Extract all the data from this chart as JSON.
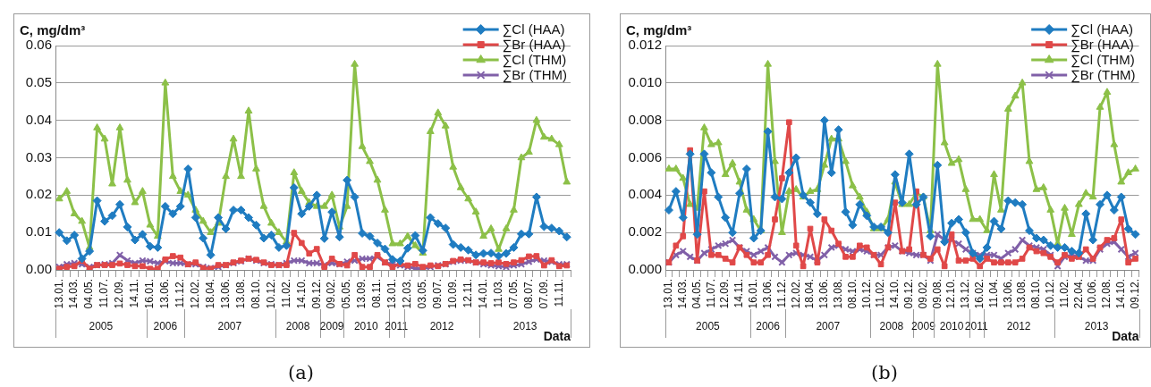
{
  "chart_data": [
    {
      "type": "line",
      "ylabel": "C, mg/dm³",
      "xlabel": "Data",
      "legend": "top right",
      "grid": "y",
      "ylim": [
        0,
        0.06
      ],
      "yticks": [
        {
          "value": 0,
          "label": "0.00"
        },
        {
          "value": 0.01,
          "label": "0.01"
        },
        {
          "value": 0.02,
          "label": "0.02"
        },
        {
          "value": 0.03,
          "label": "0.03"
        },
        {
          "value": 0.04,
          "label": "0.04"
        },
        {
          "value": 0.05,
          "label": "0.05"
        },
        {
          "value": 0.06,
          "label": "0.06"
        }
      ],
      "categories": [
        "13.01.",
        null,
        "14.03.",
        null,
        "04.05.",
        null,
        "11.07.",
        null,
        "12.09.",
        null,
        "14.11.",
        null,
        "16.01.",
        null,
        "13.06.",
        null,
        "11.12.",
        null,
        "12.02.",
        null,
        "18.04.",
        null,
        "13.06.",
        null,
        "13.08.",
        null,
        "08.10.",
        null,
        "10.12.",
        null,
        "11.02.",
        null,
        "14.10.",
        null,
        "09.12.",
        null,
        "09.02.",
        null,
        "05.05.",
        null,
        "13.09.",
        null,
        "08.11.",
        null,
        "13.01.",
        null,
        "12.03.",
        null,
        "03.05.",
        null,
        "09.07.",
        null,
        "10.09.",
        null,
        "12.11.",
        null,
        "14.01.",
        null,
        "11.03.",
        null,
        "07.05.",
        null,
        "08.07.",
        null,
        "07.09.",
        null,
        "11.11.",
        null
      ],
      "series": [
        {
          "name": "∑Cl (HAA)",
          "color": "#1f7cc1",
          "marker": "diamond",
          "values": [
            0.01,
            0.0078,
            0.0093,
            0.003,
            0.005,
            0.0185,
            0.013,
            0.0145,
            0.0175,
            0.0115,
            0.008,
            0.0095,
            0.0063,
            0.006,
            0.017,
            0.015,
            0.017,
            0.027,
            0.014,
            0.0085,
            0.004,
            0.014,
            0.011,
            0.016,
            0.016,
            0.014,
            0.012,
            0.0085,
            0.0093,
            0.006,
            0.0065,
            0.022,
            0.015,
            0.017,
            0.02,
            0.0084,
            0.0155,
            0.0088,
            0.024,
            0.0195,
            0.0098,
            0.009,
            0.0072,
            0.0056,
            0.0028,
            0.0024,
            0.0058,
            0.0092,
            0.0052,
            0.014,
            0.0124,
            0.0112,
            0.0068,
            0.006,
            0.0053,
            0.004,
            0.0044,
            0.0045,
            0.0037,
            0.0044,
            0.006,
            0.0096,
            0.0096,
            0.0195,
            0.0116,
            0.0112,
            0.0104,
            0.0088
          ]
        },
        {
          "name": "∑Br (HAA)",
          "color": "#e04848",
          "marker": "square",
          "values": [
            0.0003,
            0.0008,
            0.001,
            0.0025,
            0.0003,
            0.0013,
            0.0013,
            0.0013,
            0.0017,
            0.0013,
            0.001,
            0.001,
            0.0003,
            0.0003,
            0.0028,
            0.0037,
            0.0033,
            0.0015,
            0.002,
            0.0005,
            0.0003,
            0.0013,
            0.0013,
            0.002,
            0.0025,
            0.003,
            0.0027,
            0.002,
            0.0013,
            0.0013,
            0.0013,
            0.0099,
            0.0072,
            0.0044,
            0.0056,
            0.0008,
            0.003,
            0.0016,
            0.0012,
            0.004,
            0.0008,
            0.0008,
            0.004,
            0.002,
            0.0008,
            0.0016,
            0.0012,
            0.0016,
            0.0008,
            0.0012,
            0.001,
            0.0016,
            0.0024,
            0.0028,
            0.0026,
            0.002,
            0.002,
            0.0018,
            0.002,
            0.0016,
            0.002,
            0.0026,
            0.0036,
            0.0037,
            0.0012,
            0.0026,
            0.001,
            0.0012
          ]
        },
        {
          "name": "∑Cl (THM)",
          "color": "#8cc048",
          "marker": "triangle",
          "values": [
            0.019,
            0.021,
            0.015,
            0.013,
            0.006,
            0.038,
            0.035,
            0.023,
            0.038,
            0.024,
            0.018,
            0.021,
            0.012,
            0.009,
            0.05,
            0.025,
            0.021,
            0.02,
            0.016,
            0.013,
            0.01,
            0.0125,
            0.025,
            0.035,
            0.025,
            0.0425,
            0.027,
            0.017,
            0.0125,
            0.01,
            0.0075,
            0.026,
            0.021,
            0.018,
            0.017,
            0.017,
            0.02,
            0.0115,
            0.017,
            0.055,
            0.033,
            0.029,
            0.024,
            0.016,
            0.007,
            0.007,
            0.009,
            0.0065,
            0.0045,
            0.037,
            0.042,
            0.0385,
            0.0275,
            0.022,
            0.019,
            0.0155,
            0.009,
            0.011,
            0.0055,
            0.011,
            0.016,
            0.03,
            0.0315,
            0.04,
            0.0355,
            0.035,
            0.0335,
            0.0235
          ]
        },
        {
          "name": "∑Br (THM)",
          "color": "#8060a8",
          "marker": "cross",
          "values": [
            0.0008,
            0.0015,
            0.0018,
            0.0015,
            0.0008,
            0.0013,
            0.0015,
            0.0018,
            0.004,
            0.0025,
            0.0018,
            0.0025,
            0.0023,
            0.0018,
            0.0023,
            0.0018,
            0.0018,
            0.0015,
            0.0015,
            0.0008,
            0.0005,
            0.0008,
            0.0013,
            0.0018,
            0.0023,
            0.003,
            0.0025,
            0.0018,
            0.0015,
            0.0013,
            0.0018,
            0.0025,
            0.0025,
            0.0018,
            0.0018,
            0.0013,
            0.0018,
            0.0015,
            0.0022,
            0.0025,
            0.003,
            0.003,
            0.0035,
            0.002,
            0.0015,
            0.0012,
            0.0008,
            0.0004,
            0.0003,
            0.0008,
            0.0012,
            0.0015,
            0.0022,
            0.0025,
            0.0025,
            0.002,
            0.0015,
            0.0012,
            0.001,
            0.0008,
            0.0012,
            0.0015,
            0.0022,
            0.0028,
            0.0025,
            0.0022,
            0.0015,
            0.0015
          ]
        }
      ],
      "annotations": [
        "(a)",
        "2005",
        "2006",
        "2007",
        "2008",
        "2009",
        "2010",
        "2011",
        "2012",
        "2013"
      ]
    },
    {
      "type": "line",
      "ylabel": "C, mg/dm³",
      "xlabel": "Data",
      "legend": "top right",
      "grid": "y",
      "ylim": [
        0,
        0.012
      ],
      "yticks": [
        {
          "value": 0,
          "label": "0.000"
        },
        {
          "value": 0.002,
          "label": "0.002"
        },
        {
          "value": 0.004,
          "label": "0.004"
        },
        {
          "value": 0.006,
          "label": "0.006"
        },
        {
          "value": 0.008,
          "label": "0.008"
        },
        {
          "value": 0.01,
          "label": "0.010"
        },
        {
          "value": 0.012,
          "label": "0.012"
        }
      ],
      "categories": [
        "13.01.",
        null,
        "14.03.",
        null,
        "04.05.",
        null,
        "11.07.",
        null,
        "12.09.",
        null,
        "14.11.",
        null,
        "16.01.",
        null,
        "13.06.",
        null,
        "11.12.",
        null,
        "12.02.",
        null,
        "18.04.",
        null,
        "13.06.",
        null,
        "13.08.",
        null,
        "08.10.",
        null,
        "10.12.",
        null,
        "11.02.",
        null,
        "14.10.",
        null,
        "09.12.",
        null,
        "09.02.",
        null,
        "09.08.",
        null,
        "12.10.",
        null,
        "13.12.",
        null,
        "16.02.",
        null,
        "11.04.",
        null,
        "13.06.",
        null,
        "13.08.",
        null,
        "08.10.",
        null,
        "10.12.",
        null,
        "11.02.",
        null,
        "22.04.",
        null,
        "10.06.",
        null,
        "12.08.",
        null,
        "14.10.",
        null,
        "09.12."
      ],
      "series": [
        {
          "name": "∑Cl (HAA)",
          "color": "#1f7cc1",
          "marker": "diamond",
          "values": [
            0.0032,
            0.0042,
            0.0028,
            0.0062,
            0.0019,
            0.0062,
            0.0052,
            0.0039,
            0.0028,
            0.002,
            0.0041,
            0.0054,
            0.0017,
            0.0021,
            0.0074,
            0.0039,
            0.0038,
            0.0052,
            0.006,
            0.004,
            0.0036,
            0.003,
            0.008,
            0.0052,
            0.0075,
            0.0031,
            0.0024,
            0.0035,
            0.0029,
            0.0023,
            0.0023,
            0.002,
            0.0051,
            0.0036,
            0.0062,
            0.0035,
            0.0039,
            0.0018,
            0.0056,
            0.0015,
            0.0025,
            0.0027,
            0.002,
            0.0009,
            0.0006,
            0.0012,
            0.0026,
            0.0022,
            0.0037,
            0.0036,
            0.0035,
            0.0021,
            0.0017,
            0.0016,
            0.0013,
            0.0012,
            0.0012,
            0.001,
            0.0009,
            0.003,
            0.0016,
            0.0035,
            0.004,
            0.0032,
            0.0039,
            0.0022,
            0.0019
          ]
        },
        {
          "name": "∑Br (HAA)",
          "color": "#e04848",
          "marker": "square",
          "values": [
            0.0004,
            0.0013,
            0.0018,
            0.0064,
            0.0005,
            0.0042,
            0.0008,
            0.0008,
            0.0006,
            0.0004,
            0.0012,
            0.0008,
            0.0004,
            0.0004,
            0.0008,
            0.0027,
            0.0049,
            0.0079,
            0.0013,
            0.0002,
            0.0022,
            0.0004,
            0.0027,
            0.0021,
            0.0014,
            0.0007,
            0.0007,
            0.0013,
            0.0012,
            0.0008,
            0.0003,
            0.0012,
            0.0036,
            0.001,
            0.0011,
            0.0042,
            0.0008,
            0.0006,
            0.0011,
            0.0002,
            0.0019,
            0.0005,
            0.0005,
            0.0006,
            0.0002,
            0.0006,
            0.0004,
            0.0004,
            0.0004,
            0.0004,
            0.0006,
            0.0012,
            0.001,
            0.0009,
            0.0007,
            0.0004,
            0.0008,
            0.0006,
            0.0007,
            0.0011,
            0.0006,
            0.0012,
            0.0016,
            0.0017,
            0.0027,
            0.0004,
            0.0006
          ]
        },
        {
          "name": "∑Cl (THM)",
          "color": "#8cc048",
          "marker": "triangle",
          "values": [
            0.0054,
            0.0054,
            0.0049,
            0.0035,
            0.0033,
            0.0076,
            0.0067,
            0.0068,
            0.0051,
            0.0057,
            0.0047,
            0.0032,
            0.0027,
            0.0021,
            0.011,
            0.0058,
            0.002,
            0.0042,
            0.0043,
            0.0039,
            0.0042,
            0.0043,
            0.0056,
            0.007,
            0.007,
            0.0058,
            0.0045,
            0.0039,
            0.0031,
            0.0022,
            0.0022,
            0.0027,
            0.0047,
            0.0035,
            0.0035,
            0.0041,
            0.0039,
            0.0021,
            0.011,
            0.0068,
            0.0057,
            0.0059,
            0.0043,
            0.0027,
            0.0027,
            0.0021,
            0.0051,
            0.0032,
            0.0086,
            0.0093,
            0.01,
            0.0058,
            0.0043,
            0.0044,
            0.0032,
            0.0014,
            0.0033,
            0.0019,
            0.0035,
            0.0041,
            0.0039,
            0.0087,
            0.0095,
            0.0067,
            0.0047,
            0.0052,
            0.0054
          ]
        },
        {
          "name": "∑Br (THM)",
          "color": "#8060a8",
          "marker": "cross",
          "values": [
            0.0004,
            0.0008,
            0.001,
            0.0007,
            0.0005,
            0.0009,
            0.0011,
            0.0013,
            0.0014,
            0.0016,
            0.0012,
            0.001,
            0.0008,
            0.001,
            0.0012,
            0.0007,
            0.0004,
            0.0008,
            0.0009,
            0.0008,
            0.0007,
            0.0005,
            0.0008,
            0.0012,
            0.0013,
            0.0011,
            0.001,
            0.0011,
            0.001,
            0.0008,
            0.0008,
            0.0012,
            0.0013,
            0.001,
            0.0009,
            0.0008,
            0.0008,
            0.0005,
            0.0019,
            0.0016,
            0.0016,
            0.0014,
            0.0011,
            0.0009,
            0.0008,
            0.0008,
            0.0008,
            0.0006,
            0.0009,
            0.0011,
            0.0016,
            0.0013,
            0.0012,
            0.0011,
            0.0008,
            0.0002,
            0.0007,
            0.0008,
            0.0007,
            0.0005,
            0.0005,
            0.0011,
            0.0014,
            0.0015,
            0.0011,
            0.0007,
            0.0009
          ]
        }
      ],
      "annotations": [
        "(b)",
        "2005",
        "2006",
        "2007",
        "2008",
        "2009",
        "2010",
        "2011",
        "2012",
        "2013"
      ]
    }
  ]
}
